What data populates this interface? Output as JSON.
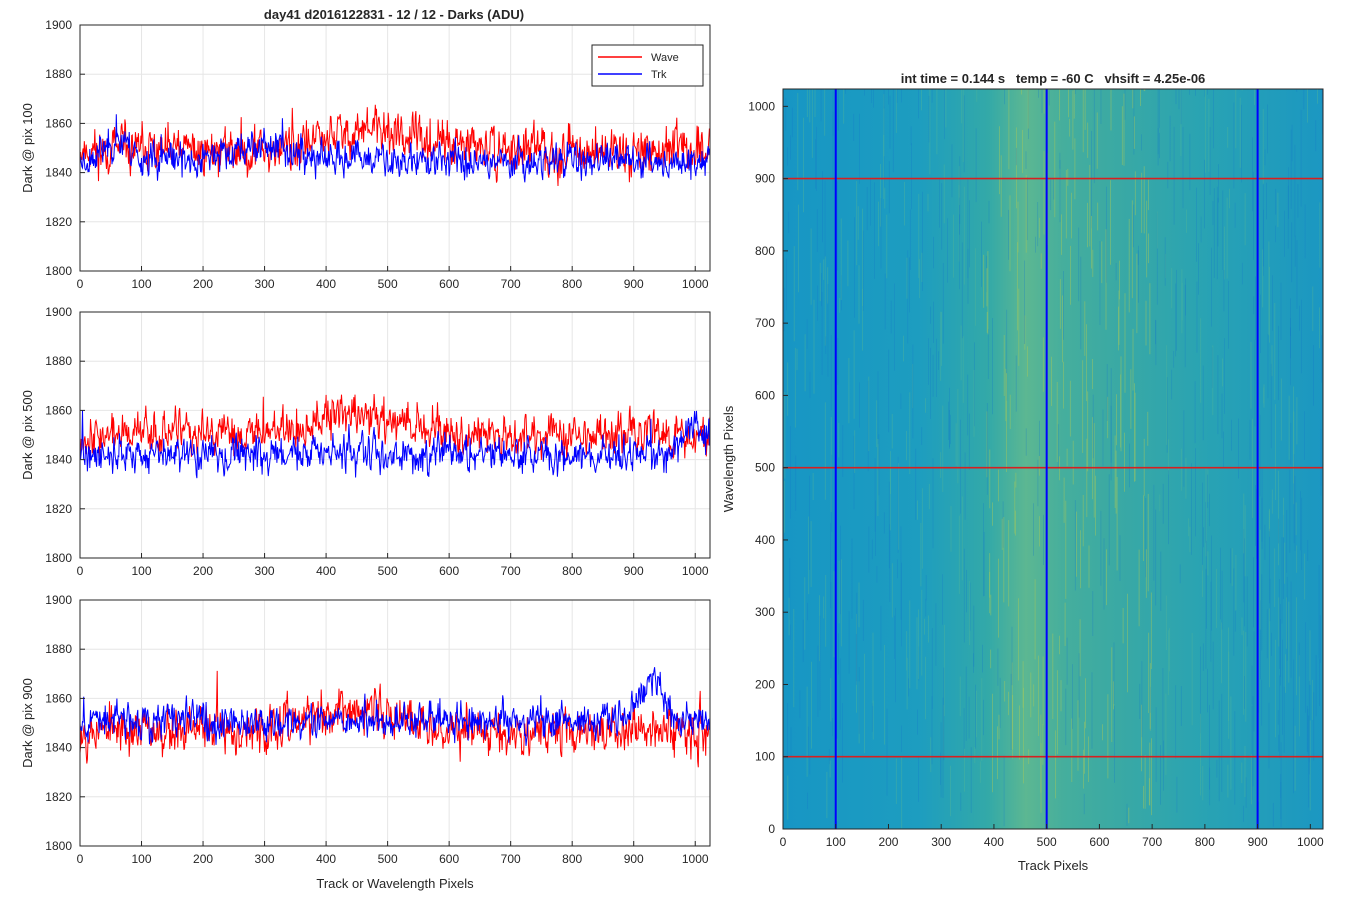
{
  "figure_title": "day41 d2016122831 - 12 / 12 - Darks (ADU)",
  "legend": {
    "entries": [
      {
        "label": "Wave",
        "color": "#ff0000"
      },
      {
        "label": "Trk",
        "color": "#0000ff"
      }
    ],
    "placement": "top-right of first panel"
  },
  "colors": {
    "wave": "#ff0000",
    "trk": "#0000ff",
    "grid": "#e6e6e6",
    "axis": "#262626"
  },
  "chart_data": [
    {
      "type": "line",
      "ylabel": "Dark @ pix 100",
      "xlabel": "",
      "xlim": [
        0,
        1024
      ],
      "ylim": [
        1800,
        1900
      ],
      "xticks": [
        0,
        100,
        200,
        300,
        400,
        500,
        600,
        700,
        800,
        900,
        1000
      ],
      "yticks": [
        1800,
        1820,
        1840,
        1860,
        1880,
        1900
      ],
      "grid": true,
      "series": [
        {
          "name": "Wave",
          "color": "#ff0000",
          "mean": 1849,
          "noise": 8,
          "bumps": [
            [
              470,
              110,
              8
            ]
          ],
          "seed": 11
        },
        {
          "name": "Trk",
          "color": "#0000ff",
          "mean": 1845,
          "noise": 6,
          "bumps": [
            [
              60,
              30,
              8
            ],
            [
              300,
              60,
              6
            ]
          ],
          "seed": 23
        }
      ]
    },
    {
      "type": "line",
      "ylabel": "Dark @ pix 500",
      "xlabel": "",
      "xlim": [
        0,
        1024
      ],
      "ylim": [
        1800,
        1900
      ],
      "xticks": [
        0,
        100,
        200,
        300,
        400,
        500,
        600,
        700,
        800,
        900,
        1000
      ],
      "yticks": [
        1800,
        1820,
        1840,
        1860,
        1880,
        1900
      ],
      "grid": true,
      "series": [
        {
          "name": "Wave",
          "color": "#ff0000",
          "mean": 1850,
          "noise": 7,
          "bumps": [
            [
              450,
              120,
              8
            ]
          ],
          "seed": 37
        },
        {
          "name": "Trk",
          "color": "#0000ff",
          "mean": 1842,
          "noise": 6,
          "bumps": [
            [
              1000,
              25,
              12
            ]
          ],
          "seed": 41
        }
      ]
    },
    {
      "type": "line",
      "ylabel": "Dark @ pix 900",
      "xlabel": "Track or Wavelength Pixels",
      "xlim": [
        0,
        1024
      ],
      "ylim": [
        1800,
        1900
      ],
      "xticks": [
        0,
        100,
        200,
        300,
        400,
        500,
        600,
        700,
        800,
        900,
        1000
      ],
      "yticks": [
        1800,
        1820,
        1840,
        1860,
        1880,
        1900
      ],
      "grid": true,
      "series": [
        {
          "name": "Wave",
          "color": "#ff0000",
          "mean": 1847,
          "noise": 8,
          "bumps": [
            [
              450,
              100,
              8
            ]
          ],
          "seed": 53
        },
        {
          "name": "Trk",
          "color": "#0000ff",
          "mean": 1851,
          "noise": 6,
          "bumps": [
            [
              930,
              25,
              18
            ]
          ],
          "seed": 67
        }
      ]
    },
    {
      "type": "heatmap",
      "title": "int time = 0.144 s   temp = -60 C   vhsift = 4.25e-06",
      "xlabel": "Track Pixels",
      "ylabel": "Wavelength Pixels",
      "xlim": [
        0,
        1024
      ],
      "ylim": [
        0,
        1024
      ],
      "xticks": [
        0,
        100,
        200,
        300,
        400,
        500,
        600,
        700,
        800,
        900,
        1000
      ],
      "yticks": [
        0,
        100,
        200,
        300,
        400,
        500,
        600,
        700,
        800,
        900,
        1000
      ],
      "colormap": "parula",
      "bright_band_x": [
        380,
        700
      ],
      "vertical_markers": [
        100,
        500,
        900
      ],
      "vertical_marker_color": "#0000ff",
      "horizontal_markers": [
        100,
        500,
        900
      ],
      "horizontal_marker_color": "#d62020"
    }
  ]
}
